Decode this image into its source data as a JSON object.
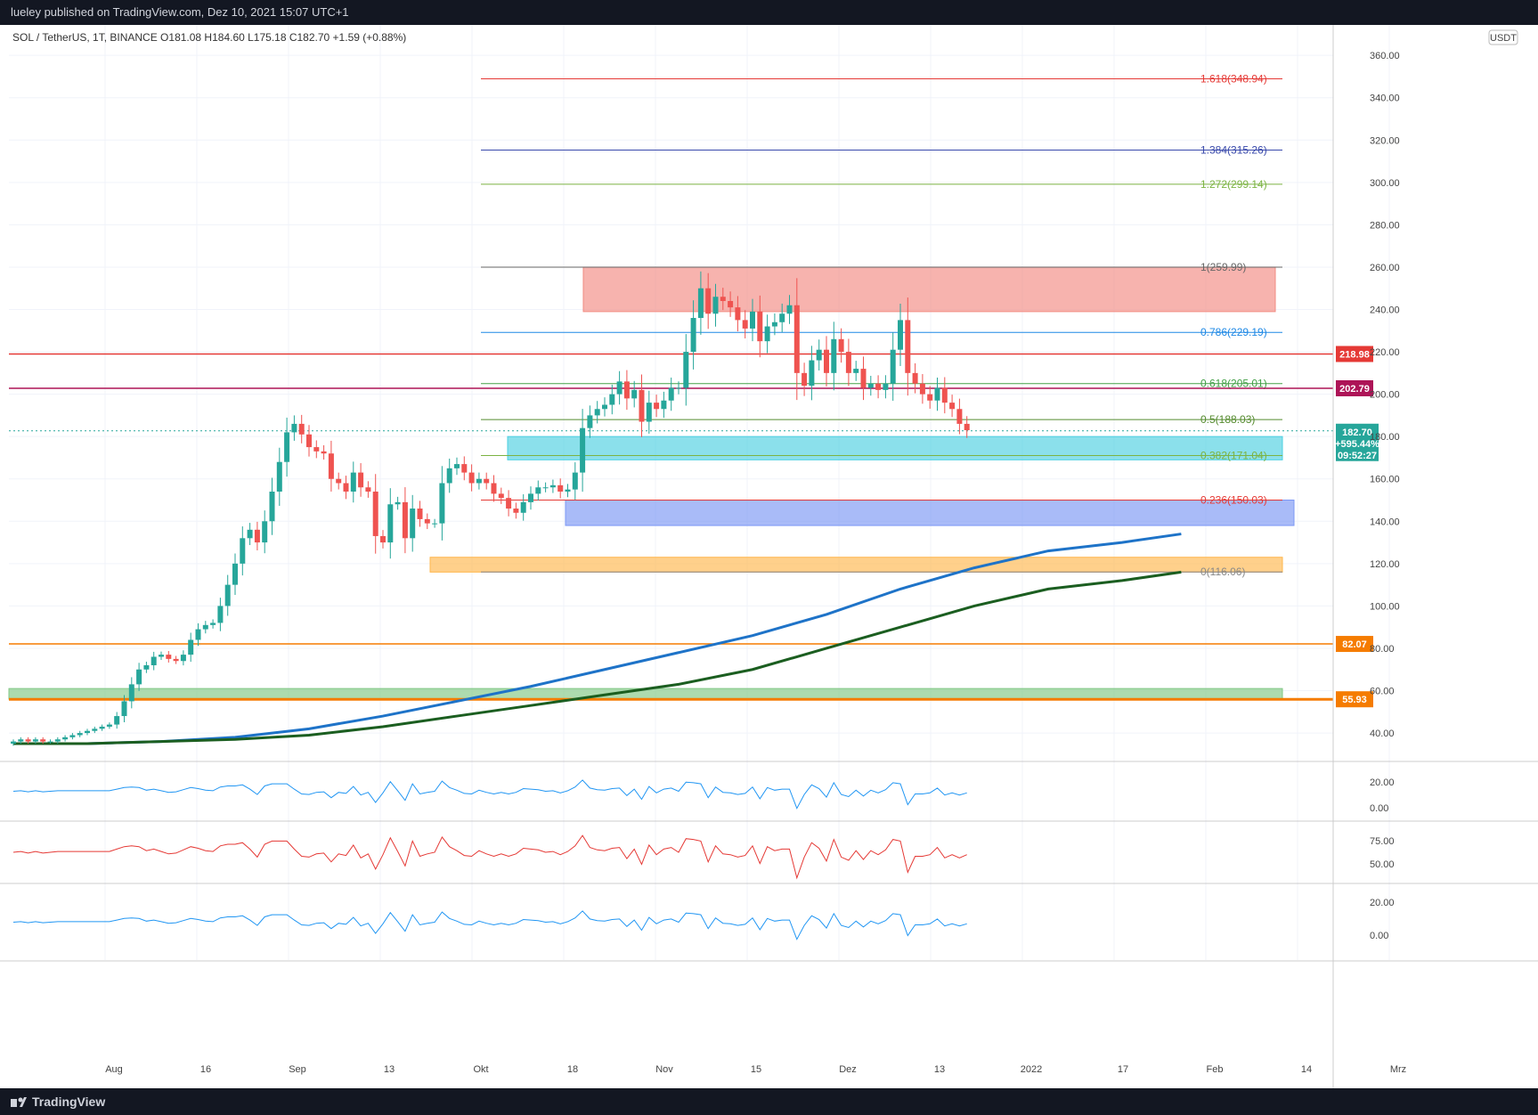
{
  "header": {
    "publisher": "lueley published on TradingView.com, Dez 10, 2021 15:07 UTC+1"
  },
  "footer": {
    "brand": "TradingView"
  },
  "colors": {
    "up": "#26a69a",
    "down": "#ef5350",
    "fib_red": "#e53935",
    "fib_blue": "#3949ab",
    "fib_green": "#7cb342",
    "ma_blue": "#1e73c8",
    "ma_green": "#1b5e20"
  },
  "chart_data": {
    "type": "candlestick",
    "symbol_line": "SOL / TetherUS, 1T, BINANCE  O181.08  H184.60  L175.18  C182.70  +1.59 (+0.88%)",
    "currency_badge": "USDT",
    "y_ticks": [
      "360.00",
      "340.00",
      "320.00",
      "300.00",
      "280.00",
      "260.00",
      "240.00",
      "220.00",
      "200.00",
      "180.00",
      "160.00",
      "140.00",
      "120.00",
      "100.00",
      "80.00",
      "60.00",
      "40.00"
    ],
    "y_tick_values": [
      360,
      340,
      320,
      300,
      280,
      260,
      240,
      220,
      200,
      180,
      160,
      140,
      120,
      100,
      80,
      60,
      40
    ],
    "ylim": [
      27,
      371
    ],
    "x_labels": [
      "Aug",
      "16",
      "Sep",
      "13",
      "Okt",
      "18",
      "Nov",
      "15",
      "Dez",
      "13",
      "2022",
      "17",
      "Feb",
      "14",
      "Mrz"
    ],
    "fib_levels": [
      {
        "label": "1.618(348.94)",
        "value": 348.94,
        "color": "#e53935"
      },
      {
        "label": "1.384(315.26)",
        "value": 315.26,
        "color": "#3949ab"
      },
      {
        "label": "1.272(299.14)",
        "value": 299.14,
        "color": "#7cb342"
      },
      {
        "label": "1(259.99)",
        "value": 259.99,
        "color": "#666666"
      },
      {
        "label": "0.786(229.19)",
        "value": 229.19,
        "color": "#1e88e5"
      },
      {
        "label": "0.618(205.01)",
        "value": 205.01,
        "color": "#43a047"
      },
      {
        "label": "0.5(188.03)",
        "value": 188.03,
        "color": "#558b2f"
      },
      {
        "label": "0.382(171.04)",
        "value": 171.04,
        "color": "#7cb342"
      },
      {
        "label": "0.236(150.03)",
        "value": 150.03,
        "color": "#e53935"
      },
      {
        "label": "0(116.06)",
        "value": 116.06,
        "color": "#888888"
      }
    ],
    "horizontal_levels": [
      {
        "label": "218.98",
        "value": 218.98,
        "color": "#e53935"
      },
      {
        "label": "202.79",
        "value": 202.79,
        "color": "#ad1457"
      },
      {
        "label": "82.07",
        "value": 82.07,
        "color": "#f57c00"
      },
      {
        "label": "55.93",
        "value": 55.93,
        "color": "#f57c00"
      }
    ],
    "zones": [
      {
        "name": "resistance",
        "top": 260,
        "bottom": 239,
        "color": "#f28b82"
      },
      {
        "name": "support-cyan",
        "top": 180,
        "bottom": 169,
        "color": "#4dd0e1"
      },
      {
        "name": "support-blue",
        "top": 150,
        "bottom": 138,
        "color": "#7b97f5"
      },
      {
        "name": "support-orange",
        "top": 123,
        "bottom": 116,
        "color": "#ffb74d"
      },
      {
        "name": "support-green",
        "top": 61,
        "bottom": 56,
        "color": "#81c784"
      }
    ],
    "last_price": {
      "price": "182.70",
      "change": "+595.44%",
      "countdown": "09:52:27",
      "value": 182.7
    },
    "closes": [
      36,
      37,
      36,
      37,
      36,
      36,
      37,
      38,
      39,
      40,
      41,
      42,
      43,
      44,
      48,
      55,
      63,
      70,
      72,
      76,
      77,
      75,
      74,
      77,
      84,
      89,
      91,
      92,
      100,
      110,
      120,
      132,
      136,
      130,
      140,
      154,
      168,
      182,
      186,
      181,
      175,
      173,
      172,
      160,
      158,
      154,
      163,
      156,
      154,
      133,
      130,
      148,
      149,
      132,
      146,
      141,
      139,
      139,
      158,
      165,
      167,
      163,
      158,
      160,
      158,
      153,
      151,
      146,
      144,
      149,
      153,
      156,
      156,
      157,
      154,
      155,
      163,
      184,
      190,
      193,
      195,
      200,
      206,
      198,
      202,
      187,
      196,
      193,
      197,
      203,
      203,
      220,
      236,
      250,
      238,
      246,
      244,
      241,
      235,
      231,
      239,
      225,
      232,
      234,
      238,
      242,
      210,
      204,
      216,
      221,
      210,
      226,
      220,
      210,
      212,
      203,
      205,
      202,
      205,
      221,
      235,
      210,
      205,
      200,
      197,
      203,
      196,
      193,
      186,
      183
    ],
    "ma_blue": [
      [
        0,
        35
      ],
      [
        10,
        35
      ],
      [
        20,
        36
      ],
      [
        30,
        38
      ],
      [
        40,
        42
      ],
      [
        50,
        48
      ],
      [
        60,
        55
      ],
      [
        70,
        62
      ],
      [
        80,
        70
      ],
      [
        90,
        78
      ],
      [
        100,
        86
      ],
      [
        110,
        96
      ],
      [
        120,
        108
      ],
      [
        130,
        118
      ],
      [
        140,
        126
      ],
      [
        150,
        130
      ],
      [
        158,
        134
      ]
    ],
    "ma_green": [
      [
        0,
        35
      ],
      [
        10,
        35
      ],
      [
        20,
        36
      ],
      [
        30,
        37
      ],
      [
        40,
        39
      ],
      [
        50,
        43
      ],
      [
        60,
        48
      ],
      [
        70,
        53
      ],
      [
        80,
        58
      ],
      [
        90,
        63
      ],
      [
        100,
        70
      ],
      [
        110,
        80
      ],
      [
        120,
        90
      ],
      [
        130,
        100
      ],
      [
        140,
        108
      ],
      [
        150,
        112
      ],
      [
        158,
        116
      ]
    ],
    "panels": [
      {
        "name": "macd",
        "ticks": [
          "20.00",
          "0.00"
        ]
      },
      {
        "name": "rsi",
        "ticks": [
          "75.00",
          "50.00"
        ]
      },
      {
        "name": "momentum",
        "ticks": [
          "20.00",
          "0.00"
        ]
      }
    ]
  }
}
